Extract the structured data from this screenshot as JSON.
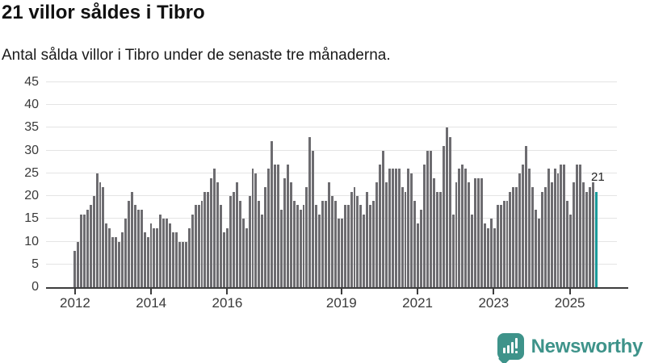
{
  "header": {
    "title": "21 villor såldes i Tibro",
    "subtitle": "Antal sålda villor i Tibro under de senaste tre månaderna."
  },
  "chart_data": {
    "type": "bar",
    "title": "21 villor såldes i Tibro",
    "subtitle": "Antal sålda villor i Tibro under de senaste tre månaderna.",
    "x_start": "2012",
    "frequency": "monthly",
    "x_first_month": "2012-01",
    "x_last_month": "2025-09",
    "values": [
      8,
      10,
      16,
      16,
      17,
      18,
      20,
      25,
      23,
      22,
      14,
      13,
      11,
      11,
      10,
      12,
      15,
      19,
      21,
      18,
      17,
      17,
      12,
      11,
      14,
      13,
      13,
      16,
      15,
      15,
      14,
      12,
      12,
      10,
      10,
      10,
      13,
      16,
      18,
      18,
      19,
      21,
      21,
      24,
      26,
      23,
      18,
      12,
      13,
      20,
      21,
      23,
      19,
      15,
      13,
      20,
      26,
      25,
      19,
      16,
      22,
      26,
      32,
      27,
      27,
      17,
      24,
      27,
      23,
      19,
      18,
      17,
      18,
      22,
      33,
      30,
      18,
      16,
      19,
      19,
      23,
      20,
      19,
      15,
      15,
      18,
      18,
      21,
      22,
      20,
      18,
      16,
      21,
      18,
      19,
      23,
      27,
      30,
      23,
      26,
      26,
      26,
      26,
      22,
      21,
      26,
      25,
      19,
      14,
      17,
      27,
      30,
      30,
      24,
      21,
      21,
      31,
      35,
      33,
      16,
      23,
      26,
      27,
      26,
      23,
      16,
      24,
      24,
      24,
      14,
      13,
      15,
      13,
      18,
      18,
      19,
      19,
      21,
      22,
      22,
      25,
      27,
      31,
      26,
      22,
      17,
      15,
      21,
      22,
      26,
      23,
      26,
      25,
      27,
      27,
      19,
      16,
      23,
      27,
      27,
      23,
      21,
      22,
      23,
      21
    ],
    "highlight": {
      "index": 164,
      "value": 21,
      "label": "21"
    },
    "yticks": [
      0,
      5,
      10,
      15,
      20,
      25,
      30,
      35,
      40,
      45
    ],
    "ylim": [
      0,
      45
    ],
    "xticks": [
      "2012",
      "2014",
      "2016",
      "2019",
      "2021",
      "2023",
      "2025"
    ],
    "grid": "horizontal",
    "legend": "none"
  },
  "colors": {
    "bar": "#6d6c70",
    "highlight": "#1a9a9a",
    "grid": "#e4e4e4",
    "axis": "#3d3d3d",
    "brand_teal": "#3e938a",
    "title_text": "#111111",
    "tick_text": "#3a3a3a"
  },
  "footer": {
    "brand": "Newsworthy",
    "logo_icon": "bar-chart-speech-bubble-icon"
  }
}
